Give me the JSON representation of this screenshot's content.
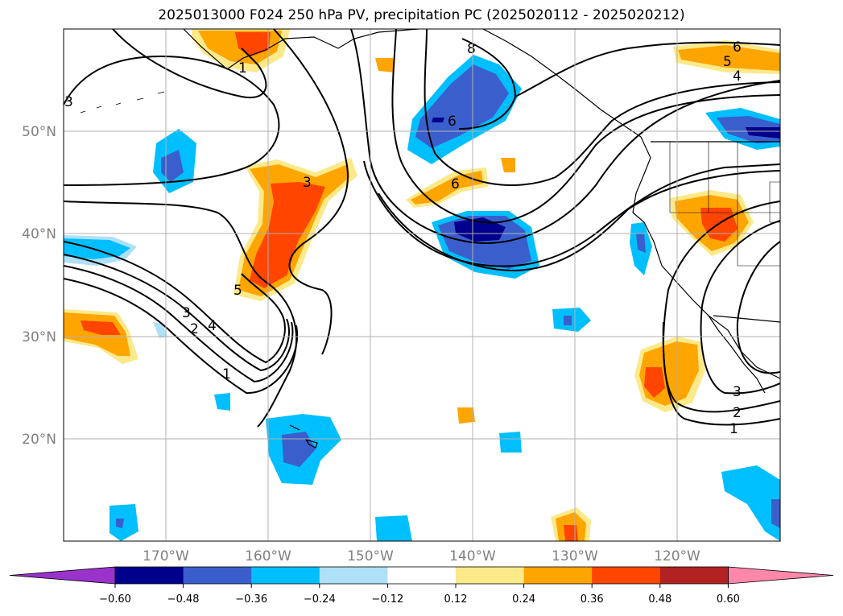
{
  "title": "2025013000 F024 250 hPa PV, precipitation PC (2025020112 - 2025020212)",
  "map": {
    "lat_labels": [
      "50°N",
      "40°N",
      "30°N",
      "20°N"
    ],
    "lon_labels": [
      "170°W",
      "160°W",
      "150°W",
      "140°W",
      "130°W",
      "120°W"
    ],
    "pv_contour_labels": [
      "3",
      "1",
      "3",
      "8",
      "6",
      "6",
      "6",
      "5",
      "4",
      "5",
      "3",
      "2",
      "4",
      "1",
      "3",
      "2",
      "1"
    ]
  },
  "colorbar": {
    "ticks": [
      "−0.60",
      "−0.48",
      "−0.36",
      "−0.24",
      "−0.12",
      "0.12",
      "0.24",
      "0.36",
      "0.48",
      "0.60"
    ],
    "colors": [
      "#9933cc",
      "#00008c",
      "#3a5fcd",
      "#00bfff",
      "#aee0f8",
      "#ffffff",
      "#fce98a",
      "#ffa500",
      "#ff4500",
      "#b22222",
      "#ff88aa"
    ]
  },
  "chart_data": {
    "type": "heatmap",
    "title": "2025013000 F024 250 hPa PV, precipitation PC (2025020112 - 2025020212)",
    "fields": [
      "250 hPa PV (contours)",
      "precipitation PC (shaded)"
    ],
    "lon_range": [
      "180°W",
      "110°W"
    ],
    "lat_range": [
      "10°N",
      "60°N"
    ],
    "colorbar_levels": [
      -0.6,
      -0.48,
      -0.36,
      -0.24,
      -0.12,
      0.12,
      0.24,
      0.36,
      0.48,
      0.6
    ],
    "grid": true
  }
}
